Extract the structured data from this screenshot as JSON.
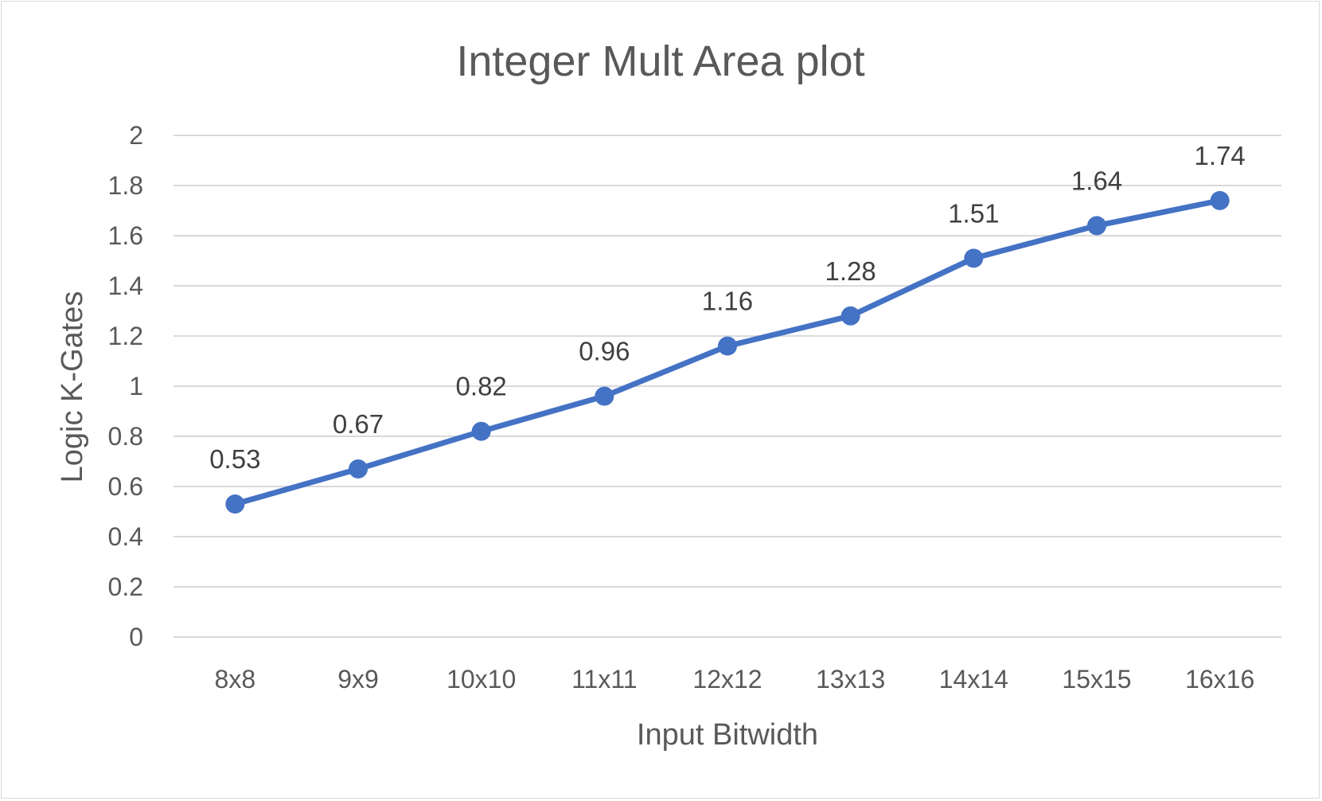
{
  "chart_data": {
    "type": "line",
    "title": "Integer Mult Area plot",
    "xlabel": "Input Bitwidth",
    "ylabel": "Logic K-Gates",
    "categories": [
      "8x8",
      "9x9",
      "10x10",
      "11x11",
      "12x12",
      "13x13",
      "14x14",
      "15x15",
      "16x16"
    ],
    "series": [
      {
        "values": [
          0.53,
          0.67,
          0.82,
          0.96,
          1.16,
          1.28,
          1.51,
          1.64,
          1.74
        ],
        "data_labels": [
          "0.53",
          "0.67",
          "0.82",
          "0.96",
          "1.16",
          "1.28",
          "1.51",
          "1.64",
          "1.74"
        ],
        "color": "#4472C4"
      }
    ],
    "ylim": [
      0,
      2
    ],
    "yticks": [
      "0",
      "0.2",
      "0.4",
      "0.6",
      "0.8",
      "1",
      "1.2",
      "1.4",
      "1.6",
      "1.8",
      "2"
    ],
    "grid": true,
    "gridline_color": "#d9d9d9",
    "legend": "none"
  }
}
